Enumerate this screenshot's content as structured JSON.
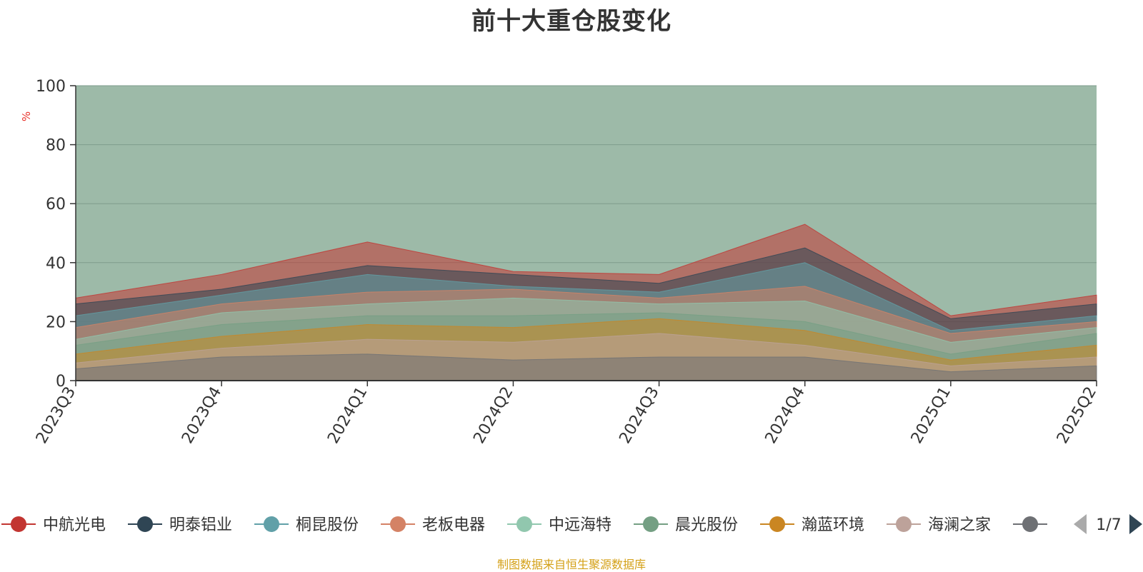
{
  "colors": {
    "footer": "#d4a017",
    "unit": "#e8332b",
    "background_series": "#9dbaa8"
  },
  "chart_data": {
    "type": "area",
    "title": "前十大重仓股变化",
    "ylabel": "%",
    "ylim": [
      0,
      100
    ],
    "yticks": [
      0,
      20,
      40,
      60,
      80,
      100
    ],
    "categories": [
      "2023Q3",
      "2023Q4",
      "2024Q1",
      "2024Q2",
      "2024Q3",
      "2024Q4",
      "2025Q1",
      "2025Q2"
    ],
    "series": [
      {
        "name": "中航光电",
        "color": "#c23531",
        "values": [
          28,
          36,
          47,
          37,
          36,
          53,
          22,
          29
        ]
      },
      {
        "name": "明泰铝业",
        "color": "#2f4554",
        "values": [
          26,
          31,
          39,
          36,
          33,
          45,
          21,
          26
        ]
      },
      {
        "name": "桐昆股份",
        "color": "#61a0a8",
        "values": [
          22,
          29,
          36,
          32,
          30,
          40,
          17,
          22
        ]
      },
      {
        "name": "老板电器",
        "color": "#d48265",
        "values": [
          18,
          26,
          30,
          31,
          28,
          32,
          16,
          20
        ]
      },
      {
        "name": "中远海特",
        "color": "#91c7ae",
        "values": [
          14,
          23,
          26,
          28,
          26,
          27,
          13,
          18
        ]
      },
      {
        "name": "晨光股份",
        "color": "#749f83",
        "values": [
          12,
          19,
          22,
          22,
          23,
          20,
          9,
          16
        ]
      },
      {
        "name": "瀚蓝环境",
        "color": "#ca8622",
        "values": [
          9,
          15,
          19,
          18,
          21,
          17,
          7,
          12
        ]
      },
      {
        "name": "海澜之家",
        "color": "#bda29a",
        "values": [
          6,
          11,
          14,
          13,
          16,
          12,
          5,
          8
        ]
      },
      {
        "name": "",
        "color": "#6e7074",
        "values": [
          4,
          8,
          9,
          7,
          8,
          8,
          3,
          5
        ]
      }
    ],
    "background_value": 100,
    "legend_position": "bottom",
    "legend_page": "1/7",
    "grid": true
  },
  "footer": {
    "text": "制图数据来自恒生聚源数据库"
  }
}
